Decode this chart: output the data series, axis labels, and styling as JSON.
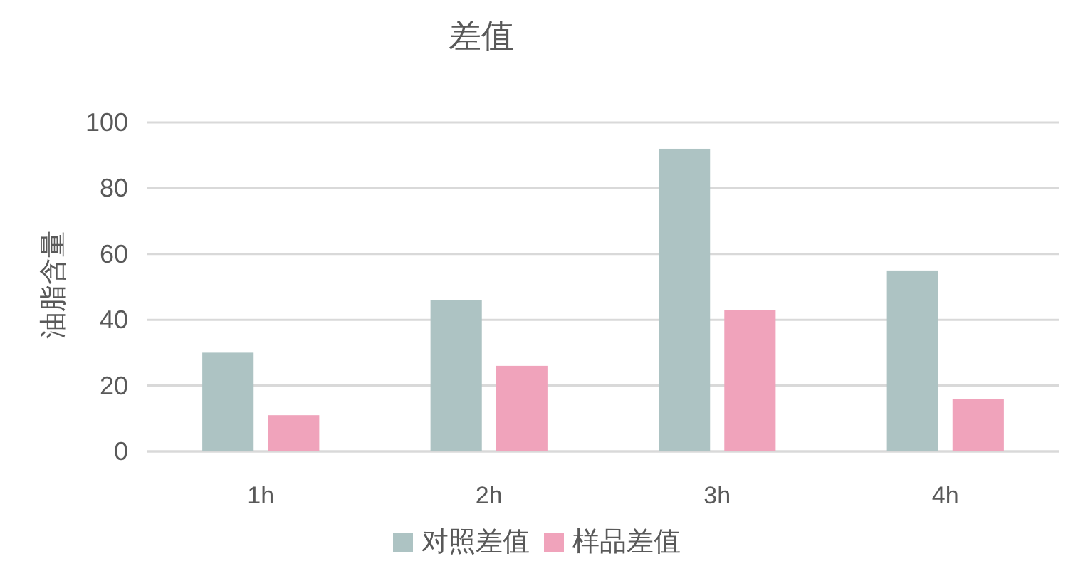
{
  "chart_data": {
    "type": "bar",
    "title": "差值",
    "ylabel": "油脂含量",
    "categories": [
      "1h",
      "2h",
      "3h",
      "4h"
    ],
    "series": [
      {
        "name": "对照差值",
        "color": "#adc3c3",
        "values": [
          30,
          46,
          92,
          55
        ]
      },
      {
        "name": "样品差值",
        "color": "#f0a3bb",
        "values": [
          11,
          26,
          43,
          16
        ]
      }
    ],
    "ylim": [
      0,
      100
    ],
    "yticks": [
      0,
      20,
      40,
      60,
      80,
      100
    ],
    "grid": "y",
    "legend": "bottom"
  }
}
